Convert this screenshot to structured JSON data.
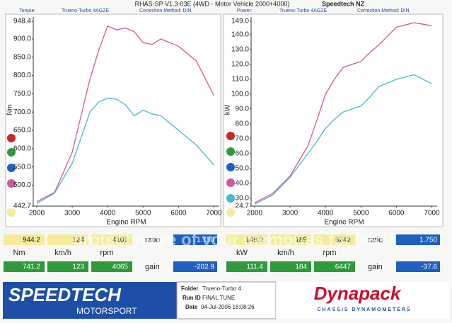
{
  "header": {
    "title": "RHAS-SP V1.3-03E  (4WD - Motor Vehicle 2000+4000)",
    "company": "Speedtech NZ"
  },
  "chart_data": [
    {
      "type": "line",
      "legend_label": "Torque:",
      "vehicle": "Trueno-Turbo 4AGZE",
      "correction": "Correction Method: DIN",
      "ylabel": "Nm",
      "xlabel": "Engine RPM",
      "x": [
        2000,
        2500,
        3000,
        3500,
        3750,
        4000,
        4250,
        4500,
        4750,
        5000,
        5250,
        5500,
        6000,
        6500,
        7000
      ],
      "series": [
        {
          "color": "#d4559f",
          "values": [
            455,
            480,
            590,
            790,
            870,
            935,
            925,
            930,
            920,
            890,
            885,
            900,
            880,
            840,
            745
          ]
        },
        {
          "color": "#43b9d2",
          "values": [
            450,
            478,
            560,
            700,
            728,
            738,
            735,
            720,
            690,
            705,
            695,
            690,
            650,
            610,
            555
          ]
        }
      ],
      "xlim": [
        1900,
        7150
      ],
      "xticks": [
        2000,
        3000,
        4000,
        5000,
        6000,
        7000
      ],
      "ylim": [
        442.7,
        948.4
      ],
      "yticks": [
        948.4,
        {
          "value": 900,
          "label": "900.0"
        },
        {
          "value": 850,
          "label": "850.0"
        },
        {
          "value": 800,
          "label": "800.0"
        },
        {
          "value": 750,
          "label": "750.0"
        },
        {
          "value": 700,
          "label": "700.0"
        },
        {
          "value": 650,
          "label": "650.0"
        },
        {
          "value": 600,
          "label": "600.0"
        },
        {
          "value": 550,
          "label": "550.0"
        },
        {
          "value": 500,
          "label": "500.0"
        },
        442.7
      ],
      "grid": false
    },
    {
      "type": "line",
      "legend_label": "Power:",
      "vehicle": "Trueno-Turbo 4AGZE",
      "correction": "Correction Method: DIN",
      "ylabel": "kW",
      "xlabel": "Engine RPM",
      "x": [
        2000,
        2500,
        3000,
        3500,
        3750,
        4000,
        4250,
        4500,
        4750,
        5000,
        5250,
        5500,
        6000,
        6500,
        7000
      ],
      "series": [
        {
          "color": "#d4559f",
          "values": [
            27,
            33,
            45,
            65,
            82,
            100,
            110,
            118,
            120,
            122,
            128,
            133,
            145,
            148,
            146
          ]
        },
        {
          "color": "#43b9d2",
          "values": [
            26,
            32,
            44,
            60,
            68,
            77,
            83,
            88,
            90,
            92,
            98,
            105,
            110,
            113,
            107
          ]
        }
      ],
      "xlim": [
        1900,
        7150
      ],
      "xticks": [
        2000,
        3000,
        4000,
        5000,
        6000,
        7000
      ],
      "ylim": [
        24.7,
        149.0
      ],
      "yticks": [
        {
          "value": 149,
          "label": "149.0"
        },
        {
          "value": 140,
          "label": "140.0"
        },
        {
          "value": 130,
          "label": "130.0"
        },
        {
          "value": 120,
          "label": "120.0"
        },
        {
          "value": 110,
          "label": "110.0"
        },
        {
          "value": 100,
          "label": "100.0"
        },
        {
          "value": 90,
          "label": "90.0"
        },
        {
          "value": 80,
          "label": "80.0"
        },
        {
          "value": 70,
          "label": "70.0"
        },
        {
          "value": 60,
          "label": "60.0"
        },
        {
          "value": 50,
          "label": "50.0"
        },
        {
          "value": 40,
          "label": "40.0"
        },
        {
          "value": 30,
          "label": "30.0"
        },
        24.7
      ],
      "grid": false
    }
  ],
  "summary": [
    {
      "row1": [
        "944.2",
        "124",
        "4101"
      ],
      "ratio_label": "ratio",
      "ratio": "1.750",
      "units": [
        "Nm",
        "km/h",
        "rpm"
      ],
      "row3": [
        "741.2",
        "123",
        "4065"
      ],
      "gain_label": "gain",
      "gain": "-202.9"
    },
    {
      "row1": [
        "149.0",
        "189",
        "6242"
      ],
      "ratio_label": "ratio",
      "ratio": "1.750",
      "units": [
        "kW",
        "km/h",
        "rpm"
      ],
      "row3": [
        "111.4",
        "184",
        "6447"
      ],
      "gain_label": "gain",
      "gain": "-37.6"
    }
  ],
  "watermark": "protect more of your memories for less!",
  "footer": {
    "brand": "SPEEDTECH",
    "brand_sub": "MOTORSPORT",
    "folder_label": "Folder",
    "folder": "Trueno-Turbo 4",
    "run_label": "Run ID",
    "run": "FINAL TUNE",
    "date_label": "Date",
    "date": "04-Jul-2006 18:08:26",
    "dyno": "Dynapack",
    "dyno_sub": "CHASSIS DYNAMOMETERS"
  }
}
